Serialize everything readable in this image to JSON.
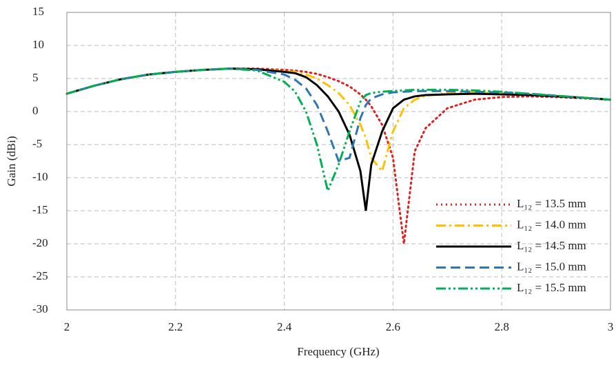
{
  "chart_data": {
    "type": "line",
    "x_label": "Frequency (GHz)",
    "y_label": "Gain (dBi)",
    "x": [
      2,
      2.05,
      2.1,
      2.15,
      2.2,
      2.25,
      2.3,
      2.35,
      2.4,
      2.42,
      2.44,
      2.46,
      2.48,
      2.5,
      2.52,
      2.54,
      2.55,
      2.56,
      2.58,
      2.6,
      2.62,
      2.64,
      2.66,
      2.7,
      2.75,
      2.8,
      2.85,
      2.9,
      2.95,
      3
    ],
    "series": [
      {
        "name": "L₁₂ = 13.5  mm",
        "color": "#e02020",
        "style": "dotted",
        "values": [
          2.7,
          3.9,
          4.9,
          5.6,
          6.0,
          6.3,
          6.5,
          6.5,
          6.3,
          6.2,
          6.0,
          5.7,
          5.2,
          4.6,
          3.8,
          2.6,
          1.8,
          0.8,
          -2,
          -7,
          -20,
          -6,
          -2.5,
          0.5,
          1.8,
          2.2,
          2.3,
          2.2,
          2.0,
          1.8
        ]
      },
      {
        "name": "L₁₂ = 14.0  mm",
        "color": "#ffc000",
        "style": "dashdot",
        "values": [
          2.7,
          3.9,
          4.9,
          5.6,
          6.0,
          6.3,
          6.5,
          6.4,
          6.1,
          6.0,
          5.6,
          5.0,
          4.0,
          2.8,
          1,
          -2,
          -4,
          -7,
          -9,
          -3,
          0.5,
          1.8,
          2.4,
          2.8,
          2.9,
          2.8,
          2.6,
          2.4,
          2.1,
          1.8
        ]
      },
      {
        "name": "L₁₂ = 14.5  mm",
        "color": "#000000",
        "style": "solid",
        "values": [
          2.7,
          3.9,
          4.9,
          5.6,
          6.0,
          6.3,
          6.5,
          6.4,
          6.0,
          5.8,
          5.2,
          4.0,
          2.3,
          0,
          -3.5,
          -9,
          -15,
          -8,
          -3,
          0.5,
          1.8,
          2.3,
          2.5,
          2.6,
          2.7,
          2.6,
          2.5,
          2.3,
          2.1,
          1.8
        ]
      },
      {
        "name": "L₁₂ = 15.0  mm",
        "color": "#2e75b6",
        "style": "dashed",
        "values": [
          2.7,
          3.9,
          4.9,
          5.6,
          6.0,
          6.3,
          6.5,
          6.3,
          5.6,
          4.8,
          3.5,
          1,
          -3,
          -7.5,
          -7,
          -1,
          1,
          2,
          2.6,
          2.9,
          3,
          3.1,
          3.1,
          3.1,
          3.0,
          2.9,
          2.7,
          2.4,
          2.1,
          1.8
        ]
      },
      {
        "name": "L₁₂ = 15.5  mm",
        "color": "#00b050",
        "style": "dashdotdot",
        "values": [
          2.7,
          3.9,
          4.9,
          5.6,
          6.0,
          6.3,
          6.5,
          6.2,
          4.5,
          3,
          0,
          -5,
          -12,
          -8,
          -3,
          1.5,
          2.5,
          2.8,
          3.0,
          3.1,
          3.2,
          3.3,
          3.3,
          3.3,
          3.2,
          3.0,
          2.7,
          2.4,
          2.1,
          1.8
        ]
      }
    ],
    "xlim": [
      2,
      3
    ],
    "xticks": [
      2,
      2.2,
      2.4,
      2.6,
      2.8,
      3
    ],
    "ylim": [
      -30,
      15
    ],
    "yticks": [
      -30,
      -25,
      -20,
      -15,
      -10,
      -5,
      0,
      5,
      10,
      15
    ],
    "grid": true,
    "legend": "lower right"
  }
}
